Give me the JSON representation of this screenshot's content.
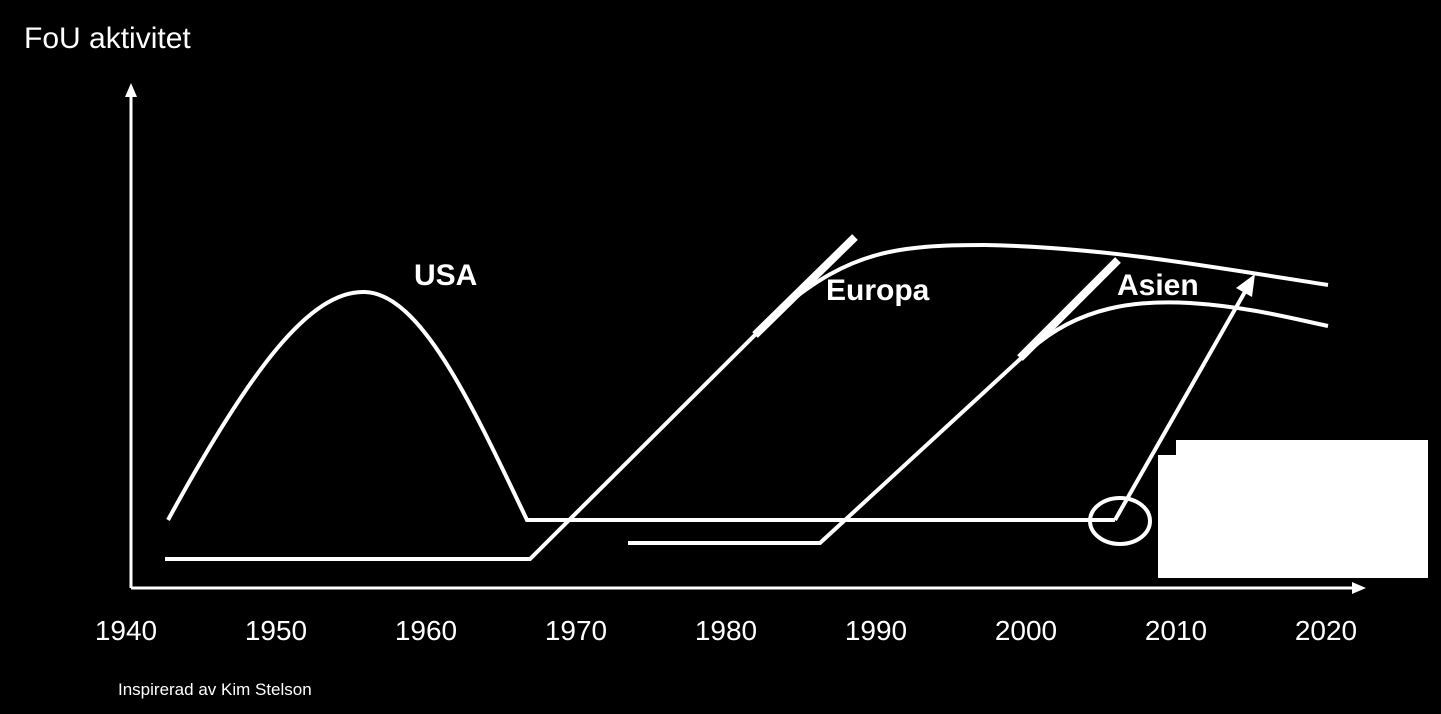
{
  "title": "FoU aktivitet",
  "x_axis": {
    "labels": [
      "1940",
      "1950",
      "1960",
      "1970",
      "1980",
      "1990",
      "2000",
      "2010",
      "2020"
    ]
  },
  "curves": [
    {
      "label": "USA"
    },
    {
      "label": "Europa"
    },
    {
      "label": "Asien"
    }
  ],
  "footnote": "Inspirerad av Kim Stelson"
}
